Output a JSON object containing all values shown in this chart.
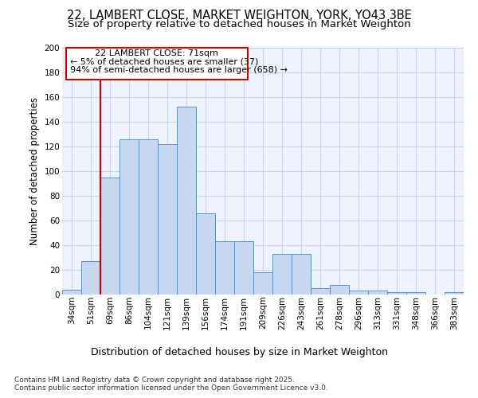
{
  "title1": "22, LAMBERT CLOSE, MARKET WEIGHTON, YORK, YO43 3BE",
  "title2": "Size of property relative to detached houses in Market Weighton",
  "xlabel": "Distribution of detached houses by size in Market Weighton",
  "ylabel": "Number of detached properties",
  "categories": [
    "34sqm",
    "51sqm",
    "69sqm",
    "86sqm",
    "104sqm",
    "121sqm",
    "139sqm",
    "156sqm",
    "174sqm",
    "191sqm",
    "209sqm",
    "226sqm",
    "243sqm",
    "261sqm",
    "278sqm",
    "296sqm",
    "313sqm",
    "331sqm",
    "348sqm",
    "366sqm",
    "383sqm"
  ],
  "values": [
    4,
    27,
    95,
    126,
    126,
    122,
    152,
    66,
    43,
    43,
    18,
    33,
    33,
    5,
    8,
    3,
    3,
    2,
    2,
    0,
    2
  ],
  "bar_color": "#c8d8f0",
  "bar_edge_color": "#6090c8",
  "grid_color": "#c8d4e8",
  "bg_color": "#eef2fc",
  "vline_index": 2,
  "vline_color": "#cc0000",
  "annotation_line1": "22 LAMBERT CLOSE: 71sqm",
  "annotation_line2": "← 5% of detached houses are smaller (37)",
  "annotation_line3": "94% of semi-detached houses are larger (658) →",
  "annotation_box_color": "#cc0000",
  "ylim": [
    0,
    200
  ],
  "yticks": [
    0,
    20,
    40,
    60,
    80,
    100,
    120,
    140,
    160,
    180,
    200
  ],
  "footnote": "Contains HM Land Registry data © Crown copyright and database right 2025.\nContains public sector information licensed under the Open Government Licence v3.0.",
  "title1_fontsize": 10.5,
  "title2_fontsize": 9.5,
  "xlabel_fontsize": 9,
  "ylabel_fontsize": 8.5,
  "tick_fontsize": 7.5,
  "annot_fontsize": 8,
  "footnote_fontsize": 6.5
}
